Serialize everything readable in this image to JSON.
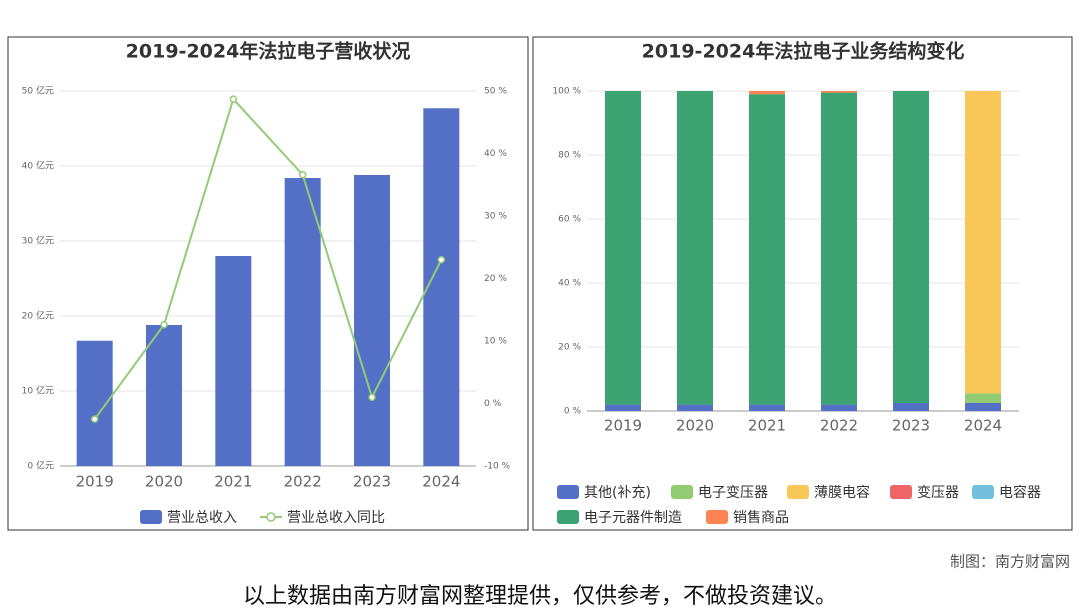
{
  "chart_data": [
    {
      "type": "combo",
      "title": "2019-2024年法拉电子营收状况",
      "categories": [
        "2019",
        "2020",
        "2021",
        "2022",
        "2023",
        "2024"
      ],
      "series": [
        {
          "name": "营业总收入",
          "type": "bar",
          "color": "#5470c6",
          "values": [
            16.7,
            18.8,
            28.0,
            38.4,
            38.8,
            47.7
          ]
        },
        {
          "name": "营业总收入同比",
          "type": "line",
          "axis": "y2",
          "color": "#91cc75",
          "values": [
            -2.5,
            12.6,
            48.7,
            36.6,
            1.0,
            23.0
          ]
        }
      ],
      "ylim": [
        0,
        50
      ],
      "yticks": [
        {
          "value": 0,
          "label": "0 亿元"
        },
        {
          "value": 10,
          "label": "10 亿元"
        },
        {
          "value": 20,
          "label": "20 亿元"
        },
        {
          "value": 30,
          "label": "30 亿元"
        },
        {
          "value": 40,
          "label": "40 亿元"
        },
        {
          "value": 50,
          "label": "50 亿元"
        }
      ],
      "y2lim": [
        -10,
        50
      ],
      "y2ticks": [
        {
          "value": -10,
          "label": "-10 %"
        },
        {
          "value": 0,
          "label": "0 %"
        },
        {
          "value": 10,
          "label": "10 %"
        },
        {
          "value": 20,
          "label": "20 %"
        },
        {
          "value": 30,
          "label": "30 %"
        },
        {
          "value": 40,
          "label": "40 %"
        },
        {
          "value": 50,
          "label": "50 %"
        }
      ],
      "grid": true
    },
    {
      "type": "stacked_bar",
      "title": "2019-2024年法拉电子业务结构变化",
      "categories": [
        "2019",
        "2020",
        "2021",
        "2022",
        "2023",
        "2024"
      ],
      "series": [
        {
          "name": "其他(补充)",
          "color": "#5470c6",
          "values": [
            2,
            2,
            2,
            2,
            2.5,
            2.5
          ]
        },
        {
          "name": "电子变压器",
          "color": "#91cc75",
          "values": [
            0,
            0,
            0,
            0,
            0,
            3
          ]
        },
        {
          "name": "薄膜电容",
          "color": "#fac858",
          "values": [
            0,
            0,
            0,
            0,
            0,
            94.5
          ]
        },
        {
          "name": "变压器",
          "color": "#ee6666",
          "values": [
            0,
            0,
            0,
            0,
            0,
            0
          ]
        },
        {
          "name": "电容器",
          "color": "#73c0de",
          "values": [
            0,
            0,
            0,
            0,
            0,
            0
          ]
        },
        {
          "name": "电子元器件制造",
          "color": "#3ba272",
          "values": [
            98,
            98,
            97,
            97.5,
            97.5,
            0
          ]
        },
        {
          "name": "销售商品",
          "color": "#fc8452",
          "values": [
            0,
            0,
            1,
            0.5,
            0,
            0
          ]
        }
      ],
      "ylim": [
        0,
        100
      ],
      "yticks": [
        {
          "value": 0,
          "label": "0 %"
        },
        {
          "value": 20,
          "label": "20 %"
        },
        {
          "value": 40,
          "label": "40 %"
        },
        {
          "value": 60,
          "label": "60 %"
        },
        {
          "value": 80,
          "label": "80 %"
        },
        {
          "value": 100,
          "label": "100 %"
        }
      ],
      "grid": true
    }
  ],
  "credit": "制图：南方财富网",
  "disclaimer": "以上数据由南方财富网整理提供，仅供参考，不做投资建议。"
}
